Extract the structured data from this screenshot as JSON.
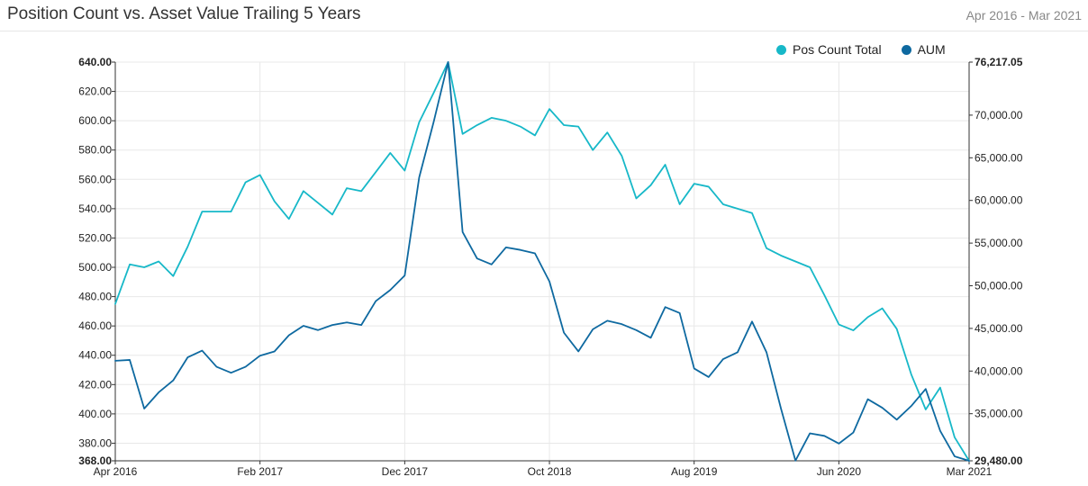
{
  "header": {
    "title": "Position Count vs. Asset Value Trailing 5 Years",
    "range": "Apr 2016 - Mar 2021"
  },
  "colors": {
    "pos_count": "#17b8c8",
    "aum": "#0e69a0",
    "grid": "#e8e8e8",
    "axis": "#333333"
  },
  "chart_data": {
    "type": "line",
    "title": "Position Count vs. Asset Value Trailing 5 Years",
    "xlabel": "",
    "ylabel": "",
    "legend_placement": "top-right",
    "grid": true,
    "x_ticks": [
      "Apr 2016",
      "Feb 2017",
      "Dec 2017",
      "Oct 2018",
      "Aug 2019",
      "Jun 2020",
      "Mar 2021"
    ],
    "x_tick_index": [
      0,
      10,
      20,
      30,
      40,
      50,
      59
    ],
    "y_left": {
      "range": [
        368,
        640
      ],
      "ticks": [
        "640.00",
        "620.00",
        "600.00",
        "580.00",
        "560.00",
        "540.00",
        "520.00",
        "500.00",
        "480.00",
        "460.00",
        "440.00",
        "420.00",
        "400.00",
        "380.00",
        "368.00"
      ],
      "values": [
        640,
        620,
        600,
        580,
        560,
        540,
        520,
        500,
        480,
        460,
        440,
        420,
        400,
        380,
        368
      ]
    },
    "y_right": {
      "range": [
        29480,
        76217.05
      ],
      "ticks": [
        "76,217.05",
        "70,000.00",
        "65,000.00",
        "60,000.00",
        "55,000.00",
        "50,000.00",
        "45,000.00",
        "40,000.00",
        "35,000.00",
        "29,480.00"
      ],
      "values": [
        76217.05,
        70000,
        65000,
        60000,
        55000,
        50000,
        45000,
        40000,
        35000,
        29480
      ]
    },
    "series": [
      {
        "name": "Pos Count Total",
        "axis": "left",
        "values": [
          475,
          502,
          500,
          504,
          494,
          514,
          538,
          538,
          538,
          558,
          563,
          545,
          533,
          552,
          544,
          536,
          554,
          552,
          565,
          578,
          566,
          599,
          619,
          640,
          591,
          597,
          602,
          600,
          596,
          590,
          608,
          597,
          596,
          580,
          592,
          576,
          547,
          556,
          570,
          543,
          557,
          555,
          543,
          540,
          537,
          513,
          508,
          504,
          500,
          481,
          461,
          457,
          466,
          472,
          458,
          427,
          403,
          418,
          384,
          368
        ]
      },
      {
        "name": "AUM",
        "axis": "right",
        "values": [
          41200,
          41300,
          35600,
          37500,
          38900,
          41600,
          42400,
          40500,
          39800,
          40500,
          41800,
          42300,
          44200,
          45300,
          44800,
          45400,
          45700,
          45400,
          48200,
          49500,
          51200,
          62700,
          69200,
          76217,
          56300,
          53200,
          52500,
          54500,
          54200,
          53800,
          50500,
          44500,
          42300,
          44900,
          45900,
          45500,
          44800,
          43900,
          47500,
          46800,
          40300,
          39300,
          41400,
          42200,
          45800,
          42200,
          35600,
          29500,
          32700,
          32400,
          31500,
          32800,
          36700,
          35700,
          34300,
          35900,
          37900,
          33000,
          30000,
          29480
        ]
      }
    ]
  }
}
